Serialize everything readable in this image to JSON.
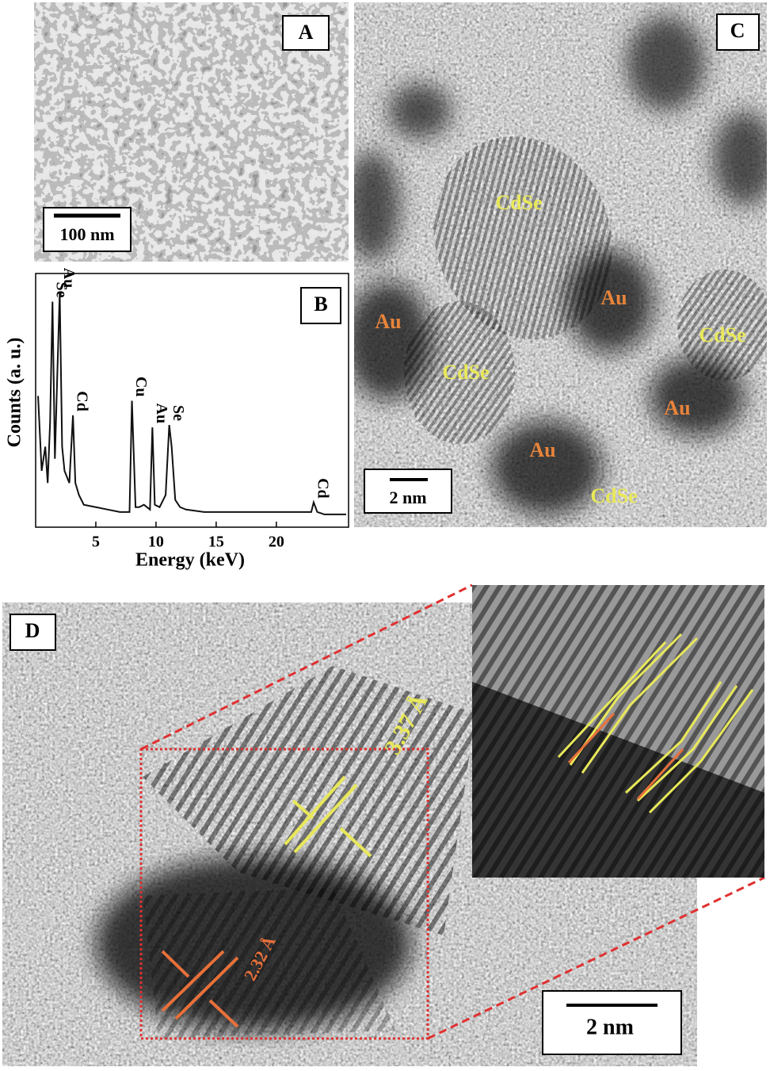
{
  "chart_data": {
    "type": "line",
    "x_label": "Energy (keV)",
    "y_label": "Counts (a. u.)",
    "color": "#111111",
    "x": [
      0.2,
      0.5,
      0.8,
      1.0,
      1.2,
      1.4,
      1.6,
      1.8,
      2.0,
      2.2,
      2.4,
      2.8,
      3.1,
      3.3,
      3.6,
      4,
      5,
      6,
      7,
      7.8,
      8.0,
      8.3,
      8.6,
      9.0,
      9.5,
      9.7,
      9.9,
      10.3,
      10.8,
      11.1,
      11.3,
      11.6,
      12,
      12.5,
      14,
      16,
      18,
      20,
      22,
      22.9,
      23.1,
      23.4,
      24,
      25.8
    ],
    "values": [
      51,
      20,
      30,
      15,
      40,
      90,
      25,
      60,
      94,
      30,
      20,
      15,
      43,
      15,
      10,
      6,
      5,
      4,
      3,
      3,
      49,
      5,
      5,
      6,
      4,
      38,
      6,
      5,
      10,
      39,
      30,
      8,
      5,
      4,
      3,
      3,
      3,
      3,
      3,
      3,
      7,
      3,
      2,
      2
    ],
    "xlim": [
      0,
      26
    ],
    "ylim": [
      0,
      100
    ],
    "xticks": [
      5,
      10,
      15,
      20
    ],
    "annotations": [
      {
        "text": "Se",
        "x": 1.4
      },
      {
        "text": "Au",
        "x": 2.0
      },
      {
        "text": "Cd",
        "x": 3.1
      },
      {
        "text": "Cu",
        "x": 8.0
      },
      {
        "text": "Au",
        "x": 9.7
      },
      {
        "text": "Se",
        "x": 11.1
      },
      {
        "text": "Cd",
        "x": 23.1
      }
    ]
  },
  "panels": {
    "a": {
      "label": "A",
      "scale_bar": "100 nm"
    },
    "b": {
      "label": "B"
    },
    "c": {
      "label": "C",
      "scale_bar": "2 nm",
      "labels": [
        "CdSe",
        "Au",
        "CdSe",
        "Au",
        "CdSe",
        "Au",
        "Au",
        "CdSe"
      ]
    },
    "d": {
      "label": "D",
      "spacing_cdse": "3.37 Å",
      "spacing_au": "2.32 Å",
      "scale_bar": "2 nm"
    }
  }
}
